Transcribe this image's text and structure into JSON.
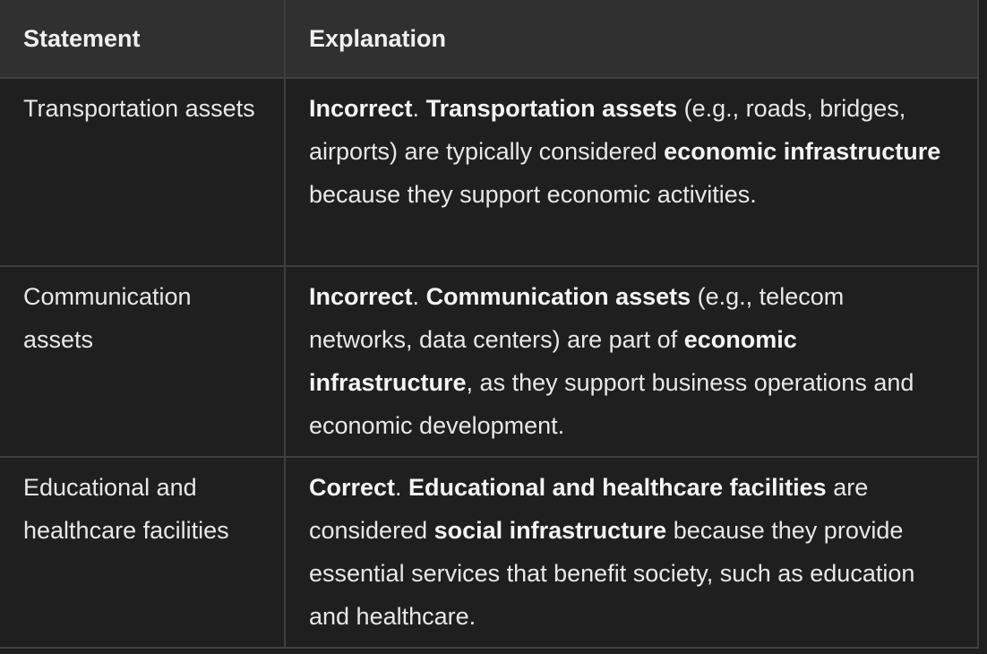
{
  "table": {
    "headers": [
      "Statement",
      "Explanation"
    ],
    "rows": [
      {
        "statement": "Transportation assets",
        "verdict": "Incorrect",
        "sep1": ". ",
        "subject": "Transportation assets",
        "text1": " (e.g., roads, bridges, airports) are typically considered ",
        "category": "economic infrastructure",
        "text2": " because they support economic activities."
      },
      {
        "statement": "Communication assets",
        "verdict": "Incorrect",
        "sep1": ". ",
        "subject": "Communication assets",
        "text1": " (e.g., telecom networks, data centers) are part of ",
        "category": "economic infrastructure",
        "text2": ", as they support business operations and economic development."
      },
      {
        "statement": "Educational and healthcare facilities",
        "verdict": "Correct",
        "sep1": ". ",
        "subject": "Educational and healthcare facilities",
        "text1": " are considered ",
        "category": "social infrastructure",
        "text2": " because they provide essential services that benefit society, such as education and healthcare."
      }
    ]
  }
}
